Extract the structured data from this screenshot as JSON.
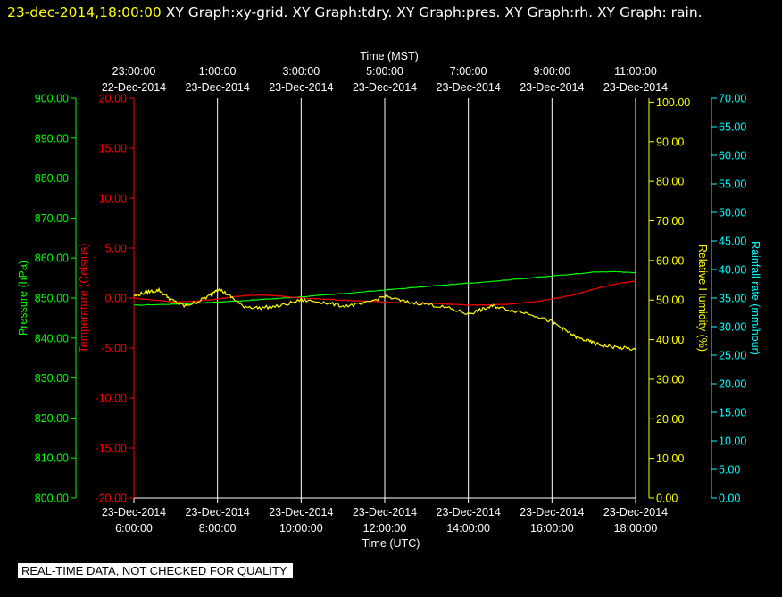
{
  "header": {
    "timestamp": "23-dec-2014,18:00:00",
    "graphs": " XY Graph:xy-grid.  XY Graph:tdry.  XY Graph:pres.  XY Graph:rh.  XY Graph: rain."
  },
  "banner": "REAL-TIME DATA, NOT CHECKED FOR QUALITY",
  "colors": {
    "background": "#000000",
    "grid": "#ffffff",
    "pressure": "#00ff00",
    "temperature": "#ff0000",
    "humidity": "#ffff00",
    "rain": "#00ffff"
  },
  "chart_data": {
    "type": "line",
    "top_axis": {
      "title": "Time (MST)",
      "ticks": [
        {
          "time": "23:00:00",
          "date": "22-Dec-2014"
        },
        {
          "time": "1:00:00",
          "date": "23-Dec-2014"
        },
        {
          "time": "3:00:00",
          "date": "23-Dec-2014"
        },
        {
          "time": "5:00:00",
          "date": "23-Dec-2014"
        },
        {
          "time": "7:00:00",
          "date": "23-Dec-2014"
        },
        {
          "time": "9:00:00",
          "date": "23-Dec-2014"
        },
        {
          "time": "11:00:00",
          "date": "23-Dec-2014"
        }
      ]
    },
    "bottom_axis": {
      "title": "Time (UTC)",
      "ticks": [
        {
          "date": "23-Dec-2014",
          "time": "6:00:00"
        },
        {
          "date": "23-Dec-2014",
          "time": "8:00:00"
        },
        {
          "date": "23-Dec-2014",
          "time": "10:00:00"
        },
        {
          "date": "23-Dec-2014",
          "time": "12:00:00"
        },
        {
          "date": "23-Dec-2014",
          "time": "14:00:00"
        },
        {
          "date": "23-Dec-2014",
          "time": "16:00:00"
        },
        {
          "date": "23-Dec-2014",
          "time": "18:00:00"
        }
      ],
      "xlim": [
        6,
        18
      ]
    },
    "axes": {
      "pressure": {
        "label": "Pressure (hPa)",
        "ylim": [
          800,
          900
        ],
        "ticks": [
          "900.00",
          "890.00",
          "880.00",
          "870.00",
          "860.00",
          "850.00",
          "840.00",
          "830.00",
          "820.00",
          "810.00",
          "800.00"
        ]
      },
      "temperature": {
        "label": "Temperature (Celsius)",
        "ylim": [
          -20,
          20
        ],
        "ticks": [
          "20.00",
          "15.00",
          "10.00",
          "5.00",
          "0.00",
          "-5.00",
          "-10.00",
          "-15.00",
          "-20.00"
        ]
      },
      "humidity": {
        "label": "Relative Humidity (%)",
        "ylim": [
          0,
          101
        ],
        "ticks": [
          "100.00",
          "90.00",
          "80.00",
          "70.00",
          "60.00",
          "50.00",
          "40.00",
          "30.00",
          "20.00",
          "10.00",
          "0.00"
        ]
      },
      "rain": {
        "label": "Rainfall rate (mm/hour)",
        "ylim": [
          0,
          70
        ],
        "ticks": [
          "70.00",
          "65.00",
          "60.00",
          "55.00",
          "50.00",
          "45.00",
          "40.00",
          "35.00",
          "30.00",
          "25.00",
          "20.00",
          "15.00",
          "10.00",
          "5.00",
          "0.00"
        ]
      }
    },
    "series": [
      {
        "key": "pressure",
        "axis": "pressure",
        "x": [
          6,
          7,
          8,
          9,
          10,
          11,
          12,
          13,
          14,
          15,
          16,
          17,
          17.5,
          18
        ],
        "values": [
          848.2,
          848.5,
          849,
          849.6,
          850.3,
          851.1,
          852,
          852.9,
          853.7,
          854.6,
          855.5,
          856.5,
          856.6,
          856.3
        ]
      },
      {
        "key": "temperature",
        "axis": "temperature",
        "x": [
          6,
          6.5,
          7,
          7.5,
          8,
          8.5,
          9,
          9.5,
          10,
          10.5,
          11,
          11.5,
          12,
          12.5,
          13,
          13.5,
          14,
          14.5,
          15,
          15.5,
          16,
          16.5,
          17,
          17.5,
          18
        ],
        "values": [
          0.0,
          -0.2,
          -0.4,
          -0.3,
          -0.1,
          0.2,
          0.3,
          0.2,
          0.0,
          -0.1,
          -0.2,
          -0.3,
          -0.4,
          -0.5,
          -0.5,
          -0.6,
          -0.7,
          -0.7,
          -0.6,
          -0.4,
          -0.1,
          0.3,
          0.9,
          1.4,
          1.7
        ]
      },
      {
        "key": "humidity",
        "axis": "humidity",
        "x": [
          6,
          6.3,
          6.6,
          6.9,
          7.2,
          7.5,
          7.8,
          8.0,
          8.3,
          8.6,
          9.0,
          9.5,
          10.0,
          10.5,
          11.0,
          11.5,
          12.0,
          12.5,
          13.0,
          13.5,
          14.0,
          14.3,
          14.6,
          15.0,
          15.5,
          16.0,
          16.3,
          16.6,
          16.9,
          17.2,
          17.6,
          18.0
        ],
        "values": [
          51,
          52,
          52.5,
          50,
          48.5,
          49.5,
          51,
          53,
          51,
          48.5,
          48,
          48.5,
          50,
          49.5,
          48.5,
          49,
          51,
          49.5,
          49,
          48,
          46.5,
          47.5,
          48.5,
          47.5,
          46.5,
          44.5,
          42.5,
          40.5,
          39.5,
          38.5,
          38,
          37.5
        ]
      },
      {
        "key": "rain",
        "axis": "rain",
        "x": [],
        "values": []
      }
    ]
  }
}
